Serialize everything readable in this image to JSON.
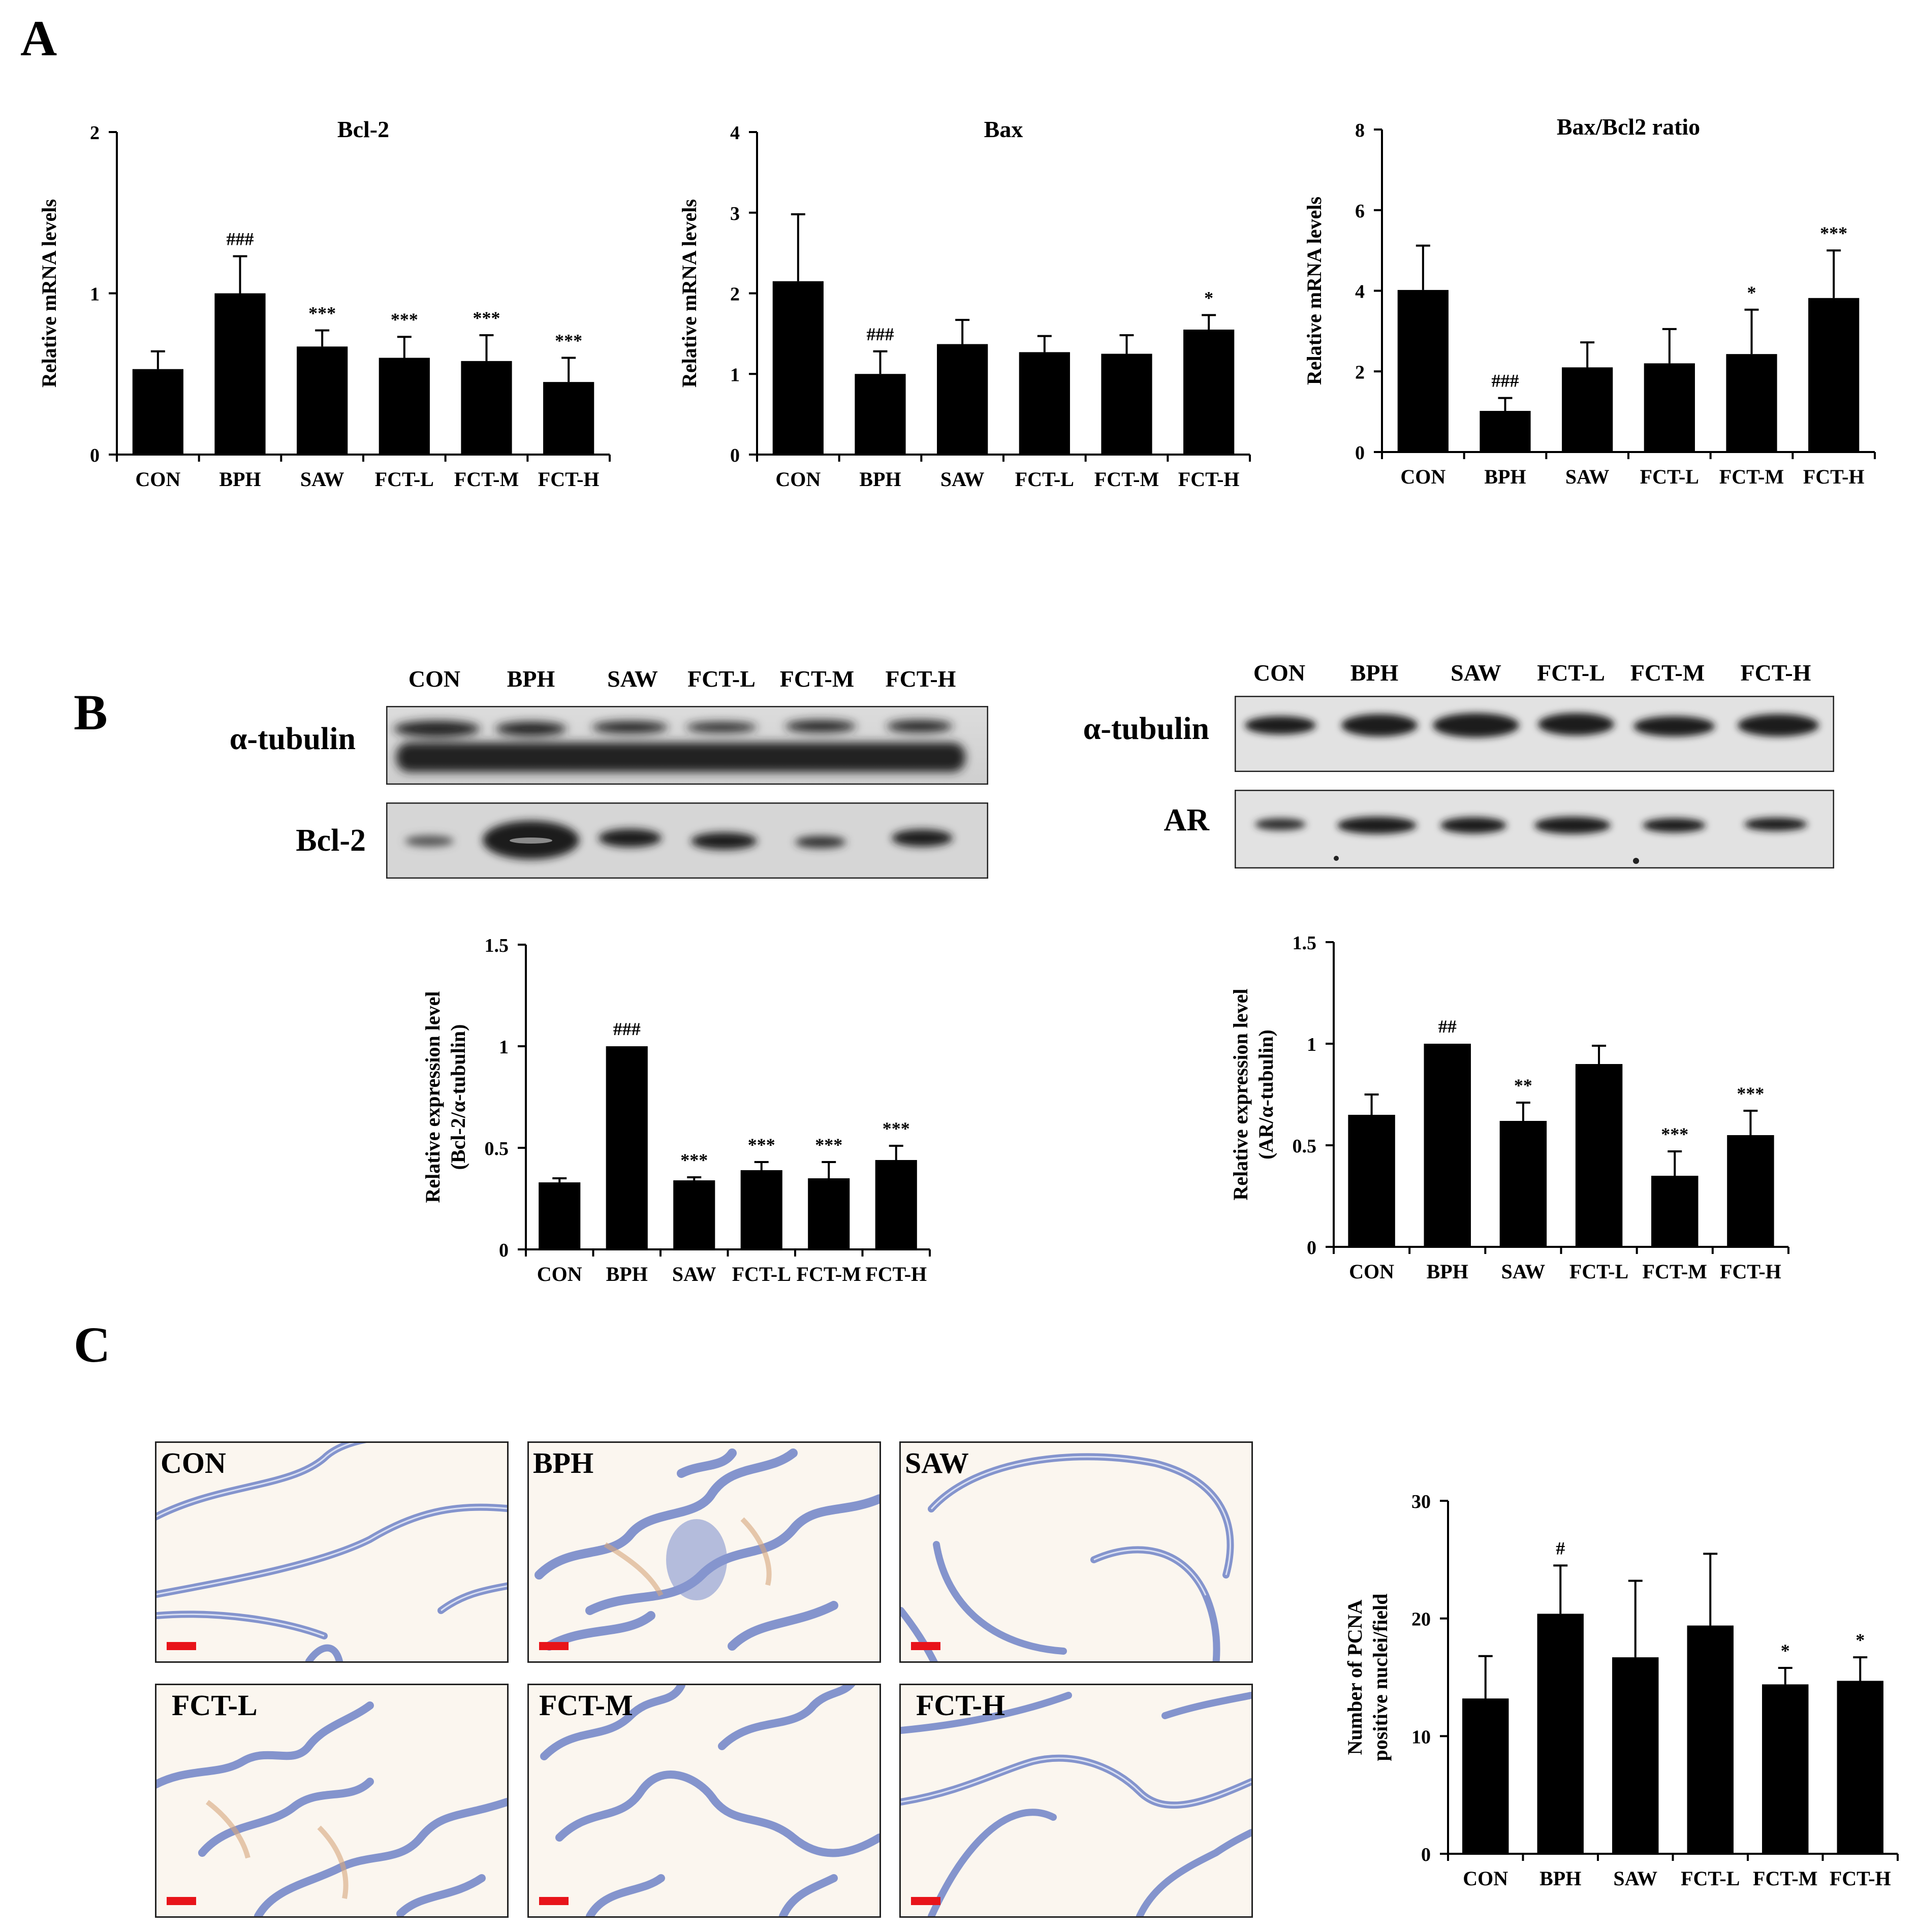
{
  "panels": {
    "a": "A",
    "b": "B",
    "c": "C"
  },
  "categories": [
    "CON",
    "BPH",
    "SAW",
    "FCT-L",
    "FCT-M",
    "FCT-H"
  ],
  "blots": {
    "left": {
      "lanes": [
        "CON",
        "BPH",
        "SAW",
        "FCT-L",
        "FCT-M",
        "FCT-H"
      ],
      "rows": [
        {
          "label": "α-tubulin",
          "protein": "alpha-tubulin"
        },
        {
          "label": "Bcl-2",
          "protein": "Bcl-2"
        }
      ]
    },
    "right": {
      "lanes": [
        "CON",
        "BPH",
        "SAW",
        "FCT-L",
        "FCT-M",
        "FCT-H"
      ],
      "rows": [
        {
          "label": "α-tubulin",
          "protein": "alpha-tubulin"
        },
        {
          "label": "AR",
          "protein": "AR"
        }
      ]
    }
  },
  "micrographs": [
    {
      "label": "CON"
    },
    {
      "label": "BPH"
    },
    {
      "label": "SAW"
    },
    {
      "label": "FCT-L"
    },
    {
      "label": "FCT-M"
    },
    {
      "label": "FCT-H"
    }
  ],
  "colors": {
    "bar": "#000000",
    "scalebar": "#e8141a",
    "stain": "#6f83c7"
  },
  "chart_data": [
    {
      "id": "bcl2-mrna",
      "type": "bar",
      "title": "Bcl-2",
      "ylabel": [
        "Relative mRNA levels"
      ],
      "ylim": [
        0,
        2
      ],
      "yticks": [
        "0",
        "1",
        "2"
      ],
      "categories": [
        "CON",
        "BPH",
        "SAW",
        "FCT-L",
        "FCT-M",
        "FCT-H"
      ],
      "values": [
        0.53,
        1.0,
        0.67,
        0.6,
        0.58,
        0.45
      ],
      "errors": [
        0.11,
        0.23,
        0.1,
        0.13,
        0.16,
        0.15
      ],
      "annotations": [
        "",
        "###",
        "***",
        "***",
        "***",
        "***"
      ]
    },
    {
      "id": "bax-mrna",
      "type": "bar",
      "title": "Bax",
      "ylabel": [
        "Relative mRNA levels"
      ],
      "ylim": [
        0,
        4
      ],
      "yticks": [
        "0",
        "1",
        "2",
        "3",
        "4"
      ],
      "categories": [
        "CON",
        "BPH",
        "SAW",
        "FCT-L",
        "FCT-M",
        "FCT-H"
      ],
      "values": [
        2.15,
        1.0,
        1.37,
        1.27,
        1.25,
        1.55
      ],
      "errors": [
        0.83,
        0.28,
        0.3,
        0.2,
        0.23,
        0.18
      ],
      "annotations": [
        "",
        "###",
        "",
        "",
        "",
        "*"
      ]
    },
    {
      "id": "ratio-mrna",
      "type": "bar",
      "title": "Bax/Bcl2 ratio",
      "ylabel": [
        "Relative mRNA levels"
      ],
      "ylim": [
        0,
        8
      ],
      "yticks": [
        "0",
        "2",
        "4",
        "6",
        "8"
      ],
      "categories": [
        "CON",
        "BPH",
        "SAW",
        "FCT-L",
        "FCT-M",
        "FCT-H"
      ],
      "values": [
        4.02,
        1.02,
        2.1,
        2.2,
        2.43,
        3.82
      ],
      "errors": [
        1.1,
        0.32,
        0.62,
        0.85,
        1.1,
        1.18
      ],
      "annotations": [
        "",
        "###",
        "",
        "",
        "*",
        "***"
      ]
    },
    {
      "id": "bcl2-protein",
      "type": "bar",
      "title": "",
      "ylabel": [
        "Relative expression level",
        "(Bcl-2/α-tubulin)"
      ],
      "ylim": [
        0,
        1.5
      ],
      "yticks": [
        "0",
        "0.5",
        "1",
        "1.5"
      ],
      "categories": [
        "CON",
        "BPH",
        "SAW",
        "FCT-L",
        "FCT-M",
        "FCT-H"
      ],
      "values": [
        0.33,
        1.0,
        0.34,
        0.39,
        0.35,
        0.44
      ],
      "errors": [
        0.02,
        0.0,
        0.015,
        0.04,
        0.08,
        0.07
      ],
      "annotations": [
        "",
        "###",
        "***",
        "***",
        "***",
        "***"
      ]
    },
    {
      "id": "ar-protein",
      "type": "bar",
      "title": "",
      "ylabel": [
        "Relative expression level",
        "(AR/α-tubulin)"
      ],
      "ylim": [
        0,
        1.5
      ],
      "yticks": [
        "0",
        "0.5",
        "1",
        "1.5"
      ],
      "categories": [
        "CON",
        "BPH",
        "SAW",
        "FCT-L",
        "FCT-M",
        "FCT-H"
      ],
      "values": [
        0.65,
        1.0,
        0.62,
        0.9,
        0.35,
        0.55
      ],
      "errors": [
        0.1,
        0.0,
        0.09,
        0.09,
        0.12,
        0.12
      ],
      "annotations": [
        "",
        "##",
        "**",
        "",
        "***",
        "***"
      ]
    },
    {
      "id": "pcna",
      "type": "bar",
      "title": "",
      "ylabel": [
        "Number of PCNA",
        "positive nuclei/field"
      ],
      "ylim": [
        0,
        30
      ],
      "yticks": [
        "0",
        "10",
        "20",
        "30"
      ],
      "categories": [
        "CON",
        "BPH",
        "SAW",
        "FCT-L",
        "FCT-M",
        "FCT-H"
      ],
      "values": [
        13.2,
        20.4,
        16.7,
        19.4,
        14.4,
        14.7
      ],
      "errors": [
        3.6,
        4.1,
        6.5,
        6.1,
        1.4,
        2.0
      ],
      "annotations": [
        "",
        "#",
        "",
        "",
        "*",
        "*"
      ]
    }
  ]
}
